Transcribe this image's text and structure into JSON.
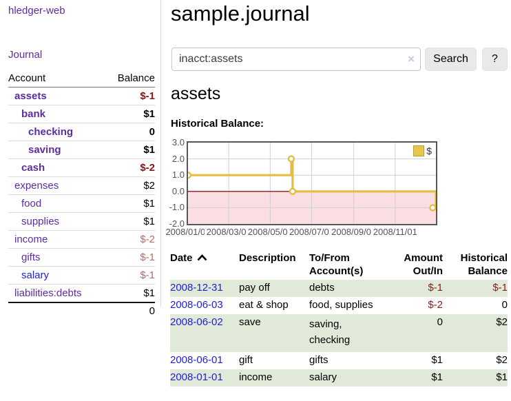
{
  "colors": {
    "link_purple": "#5c2da0",
    "link_blue": "#2323cc",
    "date_link_blue": "#1f1fd6",
    "negative_strong": "#8b1515",
    "negative_soft": "#b36b6b",
    "row_stripe_green": "#e1ead9"
  },
  "sidebar": {
    "app_title": "hledger-web",
    "journal_label": "Journal",
    "accounts_table": {
      "headers": {
        "account": "Account",
        "balance": "Balance"
      },
      "rows": [
        {
          "name": "assets",
          "balance": "$-1",
          "indent": 1,
          "bold": true,
          "balance_style": "neg-strong",
          "link_color": "purple"
        },
        {
          "name": "bank",
          "balance": "$1",
          "indent": 2,
          "bold": true,
          "balance_style": "",
          "link_color": "purple"
        },
        {
          "name": "checking",
          "balance": "0",
          "indent": 3,
          "bold": true,
          "balance_style": "",
          "link_color": "purple"
        },
        {
          "name": "saving",
          "balance": "$1",
          "indent": 3,
          "bold": true,
          "balance_style": "",
          "link_color": "purple"
        },
        {
          "name": "cash",
          "balance": "$-2",
          "indent": 2,
          "bold": true,
          "balance_style": "neg-strong",
          "link_color": "purple"
        },
        {
          "name": "expenses",
          "balance": "$2",
          "indent": 1,
          "bold": false,
          "balance_style": "",
          "link_color": "purple"
        },
        {
          "name": "food",
          "balance": "$1",
          "indent": 2,
          "bold": false,
          "balance_style": "",
          "link_color": "purple"
        },
        {
          "name": "supplies",
          "balance": "$1",
          "indent": 2,
          "bold": false,
          "balance_style": "",
          "link_color": "purple"
        },
        {
          "name": "income",
          "balance": "$-2",
          "indent": 1,
          "bold": false,
          "balance_style": "neg-soft",
          "link_color": "purple"
        },
        {
          "name": "gifts",
          "balance": "$-1",
          "indent": 2,
          "bold": false,
          "balance_style": "neg-soft",
          "link_color": "purple"
        },
        {
          "name": "salary",
          "balance": "$-1",
          "indent": 2,
          "bold": false,
          "balance_style": "neg-soft",
          "link_color": "blue"
        },
        {
          "name": "liabilities:debts",
          "balance": "$1",
          "indent": 1,
          "bold": false,
          "balance_style": "",
          "link_color": "purple"
        }
      ],
      "total": "0"
    }
  },
  "main": {
    "title": "sample.journal",
    "search": {
      "query": "inacct:assets",
      "clear_icon": "×",
      "search_button": "Search",
      "help_button": "?"
    },
    "account_heading": "assets",
    "chart_label": "Historical Balance:"
  },
  "chart_data": {
    "type": "line",
    "title": "Historical Balance",
    "x_range_days": [
      0,
      365
    ],
    "y_range": [
      -2.0,
      3.0
    ],
    "y_ticks": [
      "3.0",
      "2.0",
      "1.0",
      "0.0",
      "-1.0",
      "-2.0"
    ],
    "y_tick_values": [
      3,
      2,
      1,
      0,
      -1,
      -2
    ],
    "x_ticks": [
      {
        "day": 0,
        "label": "2008/01/01"
      },
      {
        "day": 60,
        "label": "2008/03/01"
      },
      {
        "day": 121,
        "label": "2008/05/01"
      },
      {
        "day": 182,
        "label": "2008/07/01"
      },
      {
        "day": 244,
        "label": "2008/09/01"
      },
      {
        "day": 305,
        "label": "2008/11/01"
      }
    ],
    "series": [
      {
        "name": "$",
        "color": "#e6bc43",
        "step": true,
        "line_points": [
          [
            0,
            1
          ],
          [
            152,
            1
          ],
          [
            152,
            2
          ],
          [
            154,
            2
          ],
          [
            154,
            0
          ],
          [
            365,
            0
          ],
          [
            365,
            -1
          ]
        ],
        "marker_points": [
          [
            0,
            1
          ],
          [
            152,
            2
          ],
          [
            154,
            0
          ],
          [
            365,
            -1
          ]
        ]
      }
    ],
    "legend": {
      "label": "$",
      "swatch_color": "#e8c64e",
      "position": "top-right"
    },
    "grid": {
      "on": true,
      "color": "#cfcfcf"
    },
    "negative_region_color": "#fbdee1",
    "zero_line_color": "#8f1b1b"
  },
  "register_table": {
    "headers": {
      "date": "Date",
      "description": "Description",
      "tofrom": "To/From\nAccount(s)",
      "amount": "Amount\nOut/In",
      "balance": "Historical\nBalance"
    },
    "rows": [
      {
        "date": "2008-12-31",
        "description": "pay off",
        "tofrom": "debts",
        "amount": "$-1",
        "amount_neg": true,
        "balance": "$-1",
        "balance_neg": true
      },
      {
        "date": "2008-06-03",
        "description": "eat & shop",
        "tofrom": "food, supplies",
        "amount": "$-2",
        "amount_neg": true,
        "balance": "0",
        "balance_neg": false
      },
      {
        "date": "2008-06-02",
        "description": "save",
        "tofrom": "saving,\nchecking",
        "amount": "0",
        "amount_neg": false,
        "balance": "$2",
        "balance_neg": false
      },
      {
        "date": "2008-06-01",
        "description": "gift",
        "tofrom": "gifts",
        "amount": "$1",
        "amount_neg": false,
        "balance": "$2",
        "balance_neg": false
      },
      {
        "date": "2008-01-01",
        "description": "income",
        "tofrom": "salary",
        "amount": "$1",
        "amount_neg": false,
        "balance": "$1",
        "balance_neg": false
      }
    ]
  }
}
